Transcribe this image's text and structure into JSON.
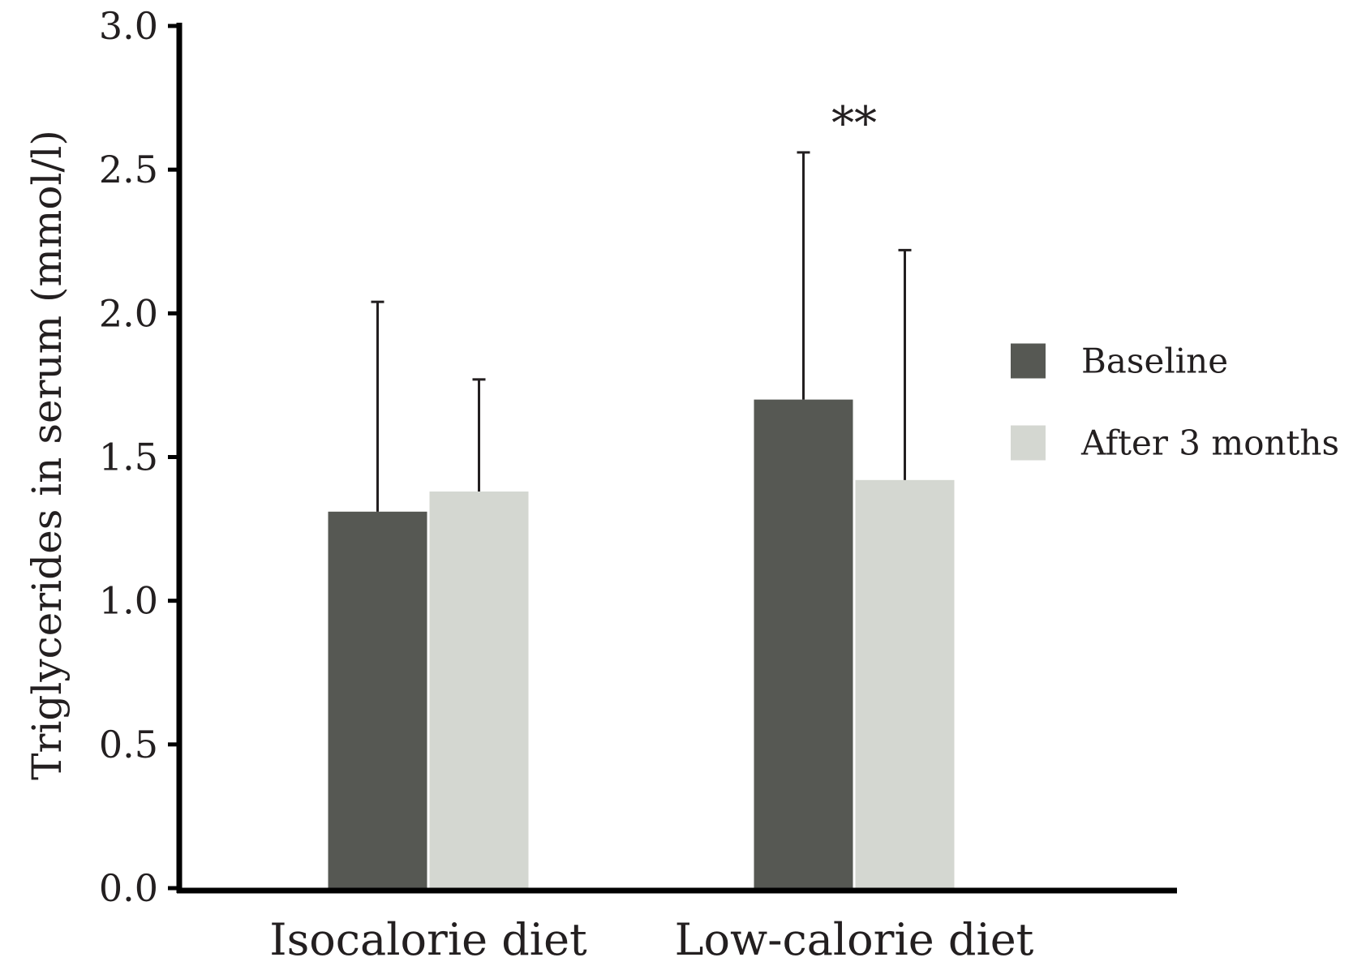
{
  "chart_data": {
    "type": "bar",
    "title": "",
    "xlabel": "",
    "ylabel": "Triglycerides in serum (mmol/l)",
    "ylim": [
      0,
      3.0
    ],
    "yticks": [
      "0.0",
      "0.5",
      "1.0",
      "1.5",
      "2.0",
      "2.5",
      "3.0"
    ],
    "categories": [
      "Isocalorie diet",
      "Low-calorie diet"
    ],
    "series": [
      {
        "name": "Baseline",
        "color": "#565853",
        "values": [
          1.31,
          1.7
        ],
        "errors": [
          0.73,
          0.86
        ]
      },
      {
        "name": "After 3 months",
        "color": "#d4d7d1",
        "values": [
          1.38,
          1.42
        ],
        "errors": [
          0.39,
          0.8
        ]
      }
    ],
    "annotations": [
      {
        "text": "**",
        "category": "Low-calorie diet",
        "value": 2.66
      }
    ],
    "legend_position": "right",
    "grid": false
  }
}
